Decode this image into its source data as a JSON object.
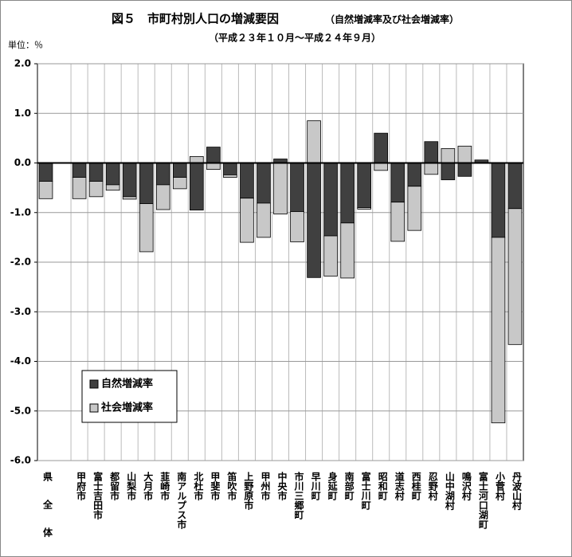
{
  "chart_data": {
    "type": "stacked-bar",
    "title": "図５　市町村別人口の増減要因",
    "title_note": "（自然増減率及び社会増減率）",
    "subtitle": "（平成２３年１０月～平成２４年９月）",
    "unit_label": "単位：％",
    "categories": [
      "県全体",
      null,
      "甲府市",
      "富士吉田市",
      "都留市",
      "山梨市",
      "大月市",
      "韮崎市",
      "南アルプス市",
      "北杜市",
      "甲斐市",
      "笛吹市",
      "上野原市",
      "甲州市",
      "中央市",
      "市川三郷町",
      "早川町",
      "身延町",
      "南部町",
      "富士川町",
      "昭和町",
      "道志村",
      "西桂町",
      "忍野村",
      "山中湖村",
      "鳴沢村",
      "富士河口湖町",
      "小菅村",
      "丹波山村"
    ],
    "series": [
      {
        "name": "自然増減率",
        "color": "#404040",
        "values": [
          -0.37,
          null,
          -0.29,
          -0.37,
          -0.44,
          -0.68,
          -0.82,
          -0.44,
          -0.29,
          -0.95,
          0.32,
          -0.24,
          -0.71,
          -0.81,
          0.08,
          -0.98,
          -2.31,
          -1.47,
          -1.21,
          -0.9,
          0.6,
          -0.79,
          -0.47,
          0.43,
          -0.34,
          -0.27,
          0.06,
          -1.5,
          -0.92
        ]
      },
      {
        "name": "社会増減率",
        "color": "#c8c8c8",
        "values": [
          -0.35,
          null,
          -0.43,
          -0.31,
          -0.11,
          -0.05,
          -0.97,
          -0.5,
          -0.23,
          0.13,
          -0.13,
          -0.05,
          -0.89,
          -0.69,
          -1.03,
          -0.61,
          0.85,
          -0.81,
          -1.11,
          -0.03,
          -0.15,
          -0.79,
          -0.89,
          -0.23,
          0.29,
          0.34,
          0,
          -3.74,
          -2.74
        ]
      }
    ],
    "ylim": [
      -6,
      2
    ],
    "yticks": [
      {
        "value": 2,
        "label": "2.0"
      },
      {
        "value": 1,
        "label": "1.0"
      },
      {
        "value": 0,
        "label": "0.0"
      },
      {
        "value": -1,
        "label": "-1.0"
      },
      {
        "value": -2,
        "label": "-2.0"
      },
      {
        "value": -3,
        "label": "-3.0"
      },
      {
        "value": -4,
        "label": "-4.0"
      },
      {
        "value": -5,
        "label": "-5.0"
      },
      {
        "value": -6,
        "label": "-6.0"
      }
    ],
    "grid": true
  }
}
